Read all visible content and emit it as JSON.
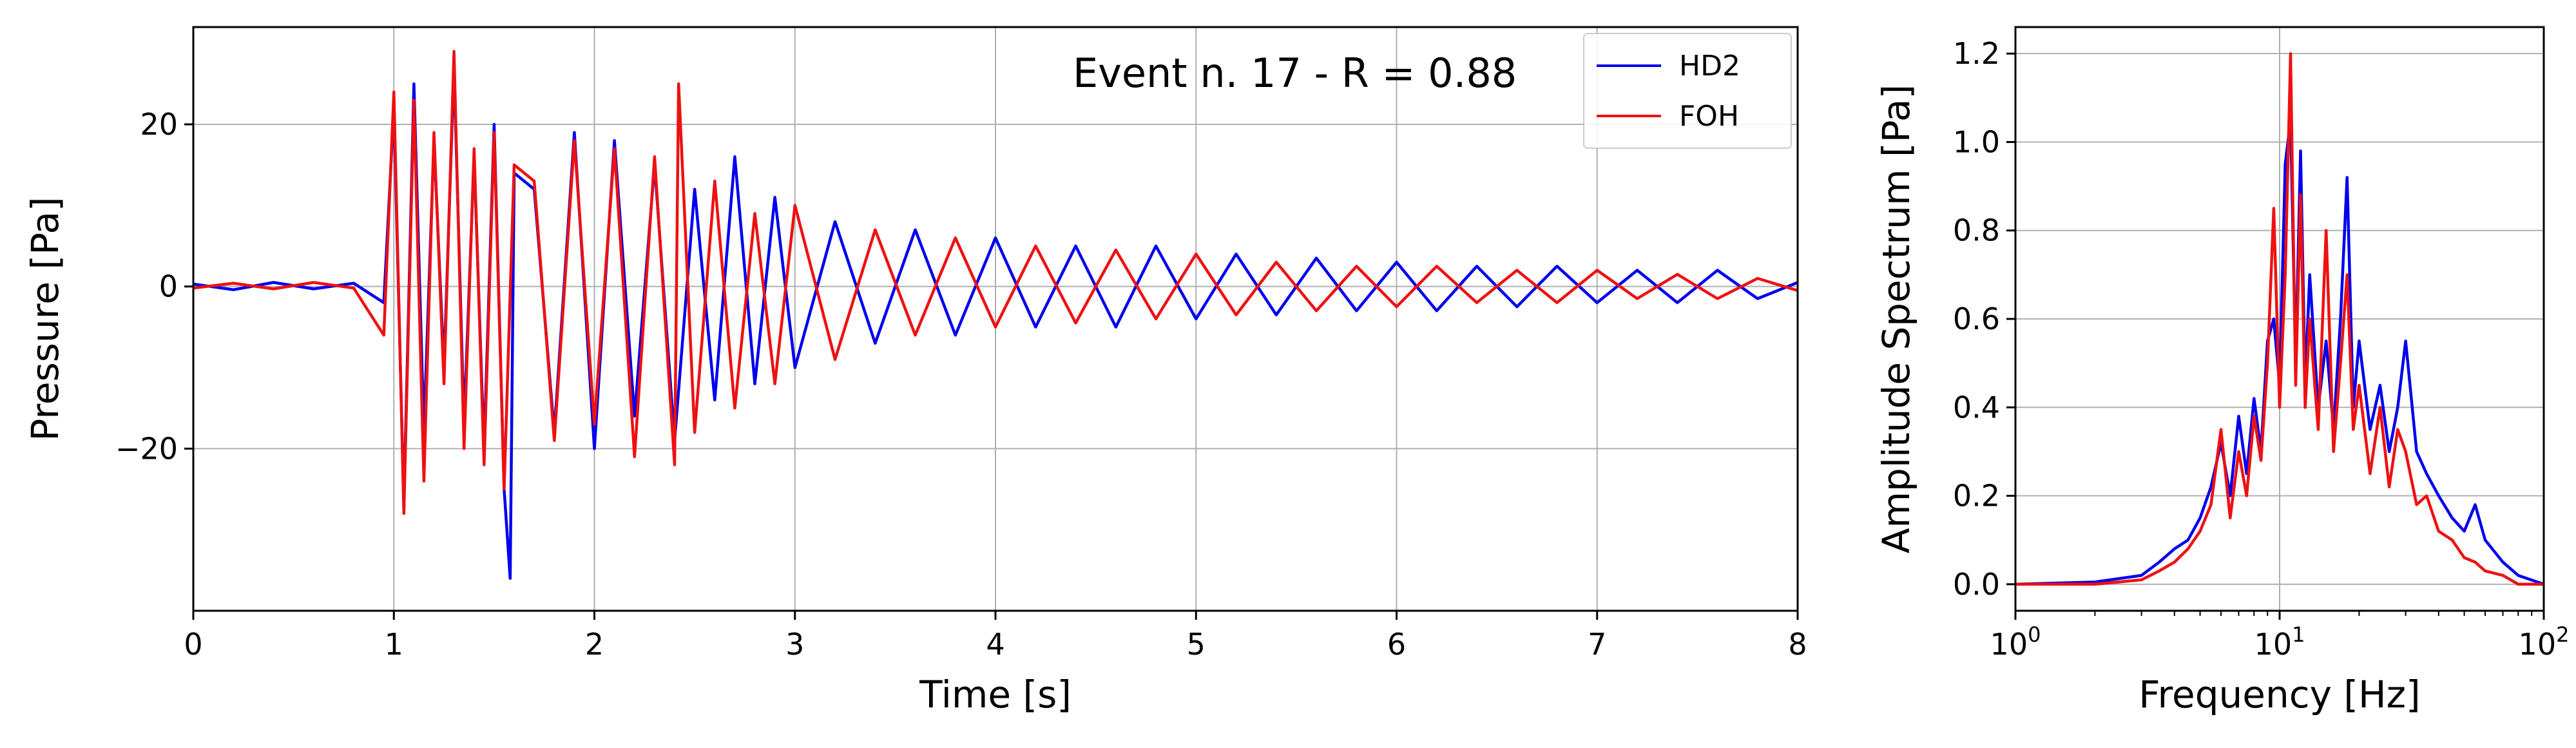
{
  "chart_data": [
    {
      "type": "line",
      "title": "",
      "annotation": "Event n. 17 - R = 0.88",
      "xlabel": "Time [s]",
      "ylabel": "Pressure [Pa]",
      "xlim": [
        0,
        8
      ],
      "ylim": [
        -40,
        32
      ],
      "xticks": [
        0,
        1,
        2,
        3,
        4,
        5,
        6,
        7,
        8
      ],
      "xtick_labels": [
        "0",
        "1",
        "2",
        "3",
        "4",
        "5",
        "6",
        "7",
        "8"
      ],
      "yticks": [
        -20,
        0,
        20
      ],
      "ytick_labels": [
        "−20",
        "0",
        "20"
      ],
      "grid": true,
      "legend": "top-right",
      "series": [
        {
          "name": "HD2",
          "color": "#0000ee",
          "x": [
            0,
            0.2,
            0.4,
            0.6,
            0.8,
            0.95,
            1.0,
            1.05,
            1.1,
            1.15,
            1.2,
            1.25,
            1.3,
            1.35,
            1.4,
            1.45,
            1.5,
            1.55,
            1.58,
            1.6,
            1.7,
            1.8,
            1.9,
            2.0,
            2.1,
            2.2,
            2.3,
            2.4,
            2.5,
            2.6,
            2.7,
            2.8,
            2.9,
            3.0,
            3.2,
            3.4,
            3.6,
            3.8,
            4.0,
            4.2,
            4.4,
            4.6,
            4.8,
            5.0,
            5.2,
            5.4,
            5.6,
            5.8,
            6.0,
            6.2,
            6.4,
            6.6,
            6.8,
            7.0,
            7.2,
            7.4,
            7.6,
            7.8,
            8.0
          ],
          "values": [
            0.3,
            -0.4,
            0.5,
            -0.3,
            0.4,
            -2,
            22,
            -27,
            25,
            -18,
            18,
            -10,
            27,
            -17,
            16,
            -20,
            20,
            -25,
            -36,
            14,
            12,
            -18,
            19,
            -20,
            18,
            -16,
            15,
            -19,
            12,
            -14,
            16,
            -12,
            11,
            -10,
            8,
            -7,
            7,
            -6,
            6,
            -5,
            5,
            -5,
            5,
            -4,
            4,
            -3.5,
            3.5,
            -3,
            3,
            -3,
            2.5,
            -2.5,
            2.5,
            -2,
            2,
            -2,
            2,
            -1.5,
            0.5
          ]
        },
        {
          "name": "FOH",
          "color": "#ee1111",
          "x": [
            0,
            0.2,
            0.4,
            0.6,
            0.8,
            0.95,
            1.0,
            1.05,
            1.1,
            1.15,
            1.2,
            1.25,
            1.3,
            1.35,
            1.4,
            1.45,
            1.5,
            1.55,
            1.6,
            1.7,
            1.8,
            1.9,
            2.0,
            2.1,
            2.2,
            2.3,
            2.4,
            2.42,
            2.5,
            2.6,
            2.7,
            2.8,
            2.9,
            3.0,
            3.2,
            3.4,
            3.6,
            3.8,
            4.0,
            4.2,
            4.4,
            4.6,
            4.8,
            5.0,
            5.2,
            5.4,
            5.6,
            5.8,
            6.0,
            6.2,
            6.4,
            6.6,
            6.8,
            7.0,
            7.2,
            7.4,
            7.6,
            7.8,
            8.0
          ],
          "values": [
            -0.2,
            0.4,
            -0.3,
            0.5,
            -0.2,
            -6,
            24,
            -28,
            23,
            -24,
            19,
            -12,
            29,
            -20,
            17,
            -22,
            19,
            -25,
            15,
            13,
            -19,
            18,
            -17,
            17,
            -21,
            16,
            -22,
            25,
            -18,
            13,
            -15,
            9,
            -12,
            10,
            -9,
            7,
            -6,
            6,
            -5,
            5,
            -4.5,
            4.5,
            -4,
            4,
            -3.5,
            3,
            -3,
            2.5,
            -2.5,
            2.5,
            -2,
            2,
            -2,
            2,
            -1.5,
            1.5,
            -1.5,
            1,
            -0.5
          ]
        }
      ]
    },
    {
      "type": "line",
      "title": "",
      "xlabel": "Frequency [Hz]",
      "ylabel": "Amplitude Spectrum [Pa]",
      "xscale": "log",
      "xlim": [
        1,
        100
      ],
      "ylim": [
        -0.06,
        1.26
      ],
      "xticks": [
        1,
        10,
        100
      ],
      "xtick_labels": [
        {
          "base": "10",
          "exp": "0"
        },
        {
          "base": "10",
          "exp": "1"
        },
        {
          "base": "10",
          "exp": "2"
        }
      ],
      "yticks": [
        0.0,
        0.2,
        0.4,
        0.6,
        0.8,
        1.0,
        1.2
      ],
      "ytick_labels": [
        "0.0",
        "0.2",
        "0.4",
        "0.6",
        "0.8",
        "1.0",
        "1.2"
      ],
      "grid": true,
      "series": [
        {
          "name": "HD2",
          "color": "#0000ee",
          "x": [
            1,
            2,
            3,
            3.5,
            4,
            4.5,
            5,
            5.5,
            6,
            6.5,
            7,
            7.5,
            8,
            8.5,
            9,
            9.5,
            10,
            10.5,
            11,
            11.5,
            12,
            12.5,
            13,
            14,
            15,
            16,
            17,
            18,
            19,
            20,
            22,
            24,
            26,
            28,
            30,
            33,
            36,
            40,
            45,
            50,
            55,
            60,
            70,
            80,
            100
          ],
          "values": [
            0.0,
            0.005,
            0.02,
            0.05,
            0.08,
            0.1,
            0.15,
            0.22,
            0.32,
            0.2,
            0.38,
            0.25,
            0.42,
            0.3,
            0.55,
            0.6,
            0.45,
            0.95,
            1.05,
            0.5,
            0.98,
            0.45,
            0.7,
            0.4,
            0.55,
            0.35,
            0.6,
            0.92,
            0.4,
            0.55,
            0.35,
            0.45,
            0.3,
            0.4,
            0.55,
            0.3,
            0.25,
            0.2,
            0.15,
            0.12,
            0.18,
            0.1,
            0.05,
            0.02,
            0.0
          ]
        },
        {
          "name": "FOH",
          "color": "#ee1111",
          "x": [
            1,
            2,
            3,
            3.5,
            4,
            4.5,
            5,
            5.5,
            6,
            6.5,
            7,
            7.5,
            8,
            8.5,
            9,
            9.5,
            10,
            10.5,
            11,
            11.5,
            12,
            12.5,
            13,
            14,
            15,
            16,
            17,
            18,
            19,
            20,
            22,
            24,
            26,
            28,
            30,
            33,
            36,
            40,
            45,
            50,
            55,
            60,
            70,
            80,
            100
          ],
          "values": [
            0.0,
            0.0,
            0.01,
            0.03,
            0.05,
            0.08,
            0.12,
            0.18,
            0.35,
            0.15,
            0.3,
            0.2,
            0.38,
            0.28,
            0.5,
            0.85,
            0.4,
            0.7,
            1.2,
            0.45,
            0.88,
            0.4,
            0.6,
            0.35,
            0.8,
            0.3,
            0.5,
            0.7,
            0.35,
            0.45,
            0.25,
            0.4,
            0.22,
            0.35,
            0.3,
            0.18,
            0.2,
            0.12,
            0.1,
            0.06,
            0.05,
            0.03,
            0.02,
            0.0,
            0.0
          ]
        }
      ]
    }
  ]
}
